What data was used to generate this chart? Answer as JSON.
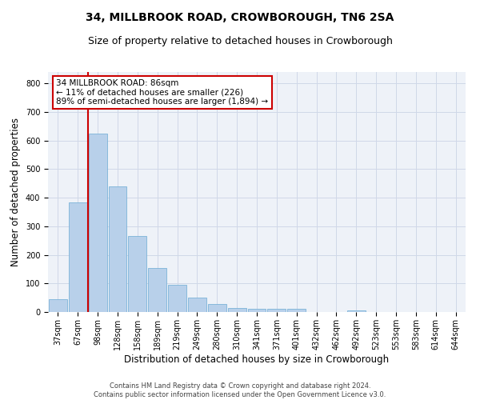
{
  "title": "34, MILLBROOK ROAD, CROWBOROUGH, TN6 2SA",
  "subtitle": "Size of property relative to detached houses in Crowborough",
  "xlabel": "Distribution of detached houses by size in Crowborough",
  "ylabel": "Number of detached properties",
  "categories": [
    "37sqm",
    "67sqm",
    "98sqm",
    "128sqm",
    "158sqm",
    "189sqm",
    "219sqm",
    "249sqm",
    "280sqm",
    "310sqm",
    "341sqm",
    "371sqm",
    "401sqm",
    "432sqm",
    "462sqm",
    "492sqm",
    "523sqm",
    "553sqm",
    "583sqm",
    "614sqm",
    "644sqm"
  ],
  "values": [
    45,
    385,
    625,
    440,
    265,
    155,
    95,
    50,
    27,
    15,
    12,
    11,
    10,
    0,
    0,
    5,
    0,
    0,
    0,
    0,
    0
  ],
  "bar_color": "#b8d0ea",
  "bar_edge_color": "#6aaad4",
  "vline_x": 1.5,
  "vline_color": "#cc0000",
  "annotation_text": "34 MILLBROOK ROAD: 86sqm\n← 11% of detached houses are smaller (226)\n89% of semi-detached houses are larger (1,894) →",
  "annotation_box_color": "#ffffff",
  "annotation_box_edge_color": "#cc0000",
  "ylim": [
    0,
    840
  ],
  "yticks": [
    0,
    100,
    200,
    300,
    400,
    500,
    600,
    700,
    800
  ],
  "grid_color": "#d0d8e8",
  "background_color": "#eef2f8",
  "footer": "Contains HM Land Registry data © Crown copyright and database right 2024.\nContains public sector information licensed under the Open Government Licence v3.0.",
  "title_fontsize": 10,
  "subtitle_fontsize": 9,
  "xlabel_fontsize": 8.5,
  "ylabel_fontsize": 8.5,
  "tick_fontsize": 7,
  "annotation_fontsize": 7.5,
  "footer_fontsize": 6
}
